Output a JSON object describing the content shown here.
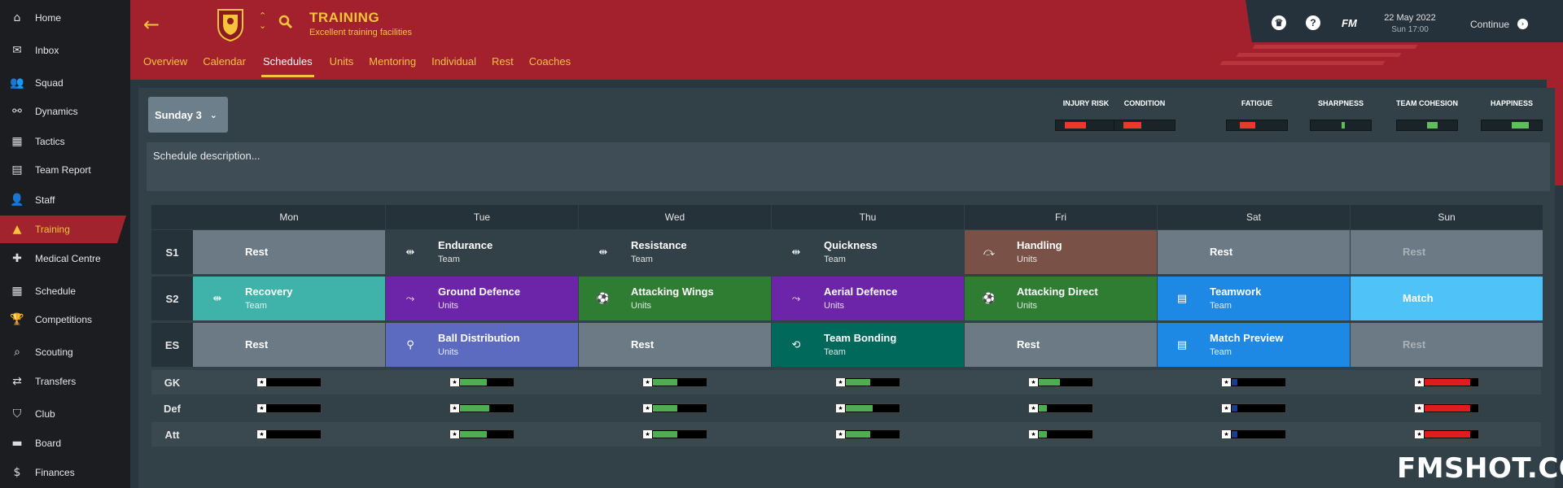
{
  "sidebar": {
    "items": [
      {
        "label": "Home",
        "icon": "home-icon",
        "glyph": "⌂"
      },
      {
        "label": "Inbox",
        "icon": "inbox-icon",
        "glyph": "✉"
      },
      {
        "label": "Squad",
        "icon": "squad-icon",
        "glyph": "👥"
      },
      {
        "label": "Dynamics",
        "icon": "dynamics-icon",
        "glyph": "⚯"
      },
      {
        "label": "Tactics",
        "icon": "tactics-icon",
        "glyph": "▦"
      },
      {
        "label": "Team Report",
        "icon": "team-report-icon",
        "glyph": "▤"
      },
      {
        "label": "Staff",
        "icon": "staff-icon",
        "glyph": "👤"
      },
      {
        "label": "Training",
        "icon": "training-icon",
        "glyph": "▲"
      },
      {
        "label": "Medical Centre",
        "icon": "medical-icon",
        "glyph": "✚"
      },
      {
        "label": "Schedule",
        "icon": "schedule-icon",
        "glyph": "▦"
      },
      {
        "label": "Competitions",
        "icon": "trophy-icon",
        "glyph": "🏆"
      },
      {
        "label": "Scouting",
        "icon": "scouting-icon",
        "glyph": "⌕"
      },
      {
        "label": "Transfers",
        "icon": "transfers-icon",
        "glyph": "⇄"
      },
      {
        "label": "Club",
        "icon": "club-shield-icon",
        "glyph": "⛉"
      },
      {
        "label": "Board",
        "icon": "board-icon",
        "glyph": "▬"
      },
      {
        "label": "Finances",
        "icon": "finances-icon",
        "glyph": "$"
      }
    ],
    "active_label": "Training"
  },
  "header": {
    "title": "TRAINING",
    "subtitle": "Excellent training facilities",
    "tabs": [
      "Overview",
      "Calendar",
      "Schedules",
      "Units",
      "Mentoring",
      "Individual",
      "Rest",
      "Coaches"
    ],
    "active_tab": "Schedules",
    "accent": "#f6c33b",
    "bar_color": "#a2212d"
  },
  "topright": {
    "date": "22 May 2022",
    "time": "Sun 17:00",
    "fm_logo": "FM",
    "continue_label": "Continue"
  },
  "schedule": {
    "selected": "Sunday 3",
    "description_placeholder": "Schedule description..."
  },
  "metrics": [
    {
      "label": "INJURY RISK",
      "color": "#e8392f",
      "level": 0.35,
      "offset": 0.15
    },
    {
      "label": "CONDITION",
      "color": "#e8392f",
      "level": 0.3,
      "offset": 0.15
    },
    {
      "label": "FATIGUE",
      "color": "#e8392f",
      "level": 0.25,
      "offset": 0.22
    },
    {
      "label": "SHARPNESS",
      "color": "#5fbf5c",
      "level": 0.05,
      "offset": 0.52
    },
    {
      "label": "TEAM COHESION",
      "color": "#5fbf5c",
      "level": 0.18,
      "offset": 0.5
    },
    {
      "label": "HAPPINESS",
      "color": "#5fbf5c",
      "level": 0.28,
      "offset": 0.5
    }
  ],
  "grid": {
    "days": [
      "Mon",
      "Tue",
      "Wed",
      "Thu",
      "Fri",
      "Sat",
      "Sun"
    ],
    "rows": [
      {
        "label": "S1",
        "cells": [
          {
            "name": "Rest",
            "sub": "",
            "icon": "",
            "color": "#6b7a84",
            "dim": false
          },
          {
            "name": "Endurance",
            "sub": "Team",
            "icon": "⇹",
            "color": "#324048",
            "dim": false
          },
          {
            "name": "Resistance",
            "sub": "Team",
            "icon": "⇹",
            "color": "#324048",
            "dim": false
          },
          {
            "name": "Quickness",
            "sub": "Team",
            "icon": "⇹",
            "color": "#324048",
            "dim": false
          },
          {
            "name": "Handling",
            "sub": "Units",
            "icon": "⤼",
            "color": "#7a5146",
            "dim": false
          },
          {
            "name": "Rest",
            "sub": "",
            "icon": "",
            "color": "#6b7a84",
            "dim": false
          },
          {
            "name": "Rest",
            "sub": "",
            "icon": "",
            "color": "#6b7a84",
            "dim": true
          }
        ]
      },
      {
        "label": "S2",
        "cells": [
          {
            "name": "Recovery",
            "sub": "Team",
            "icon": "⇹",
            "color": "#3fb3aa",
            "dim": false
          },
          {
            "name": "Ground Defence",
            "sub": "Units",
            "icon": "⤳",
            "color": "#6c24a8",
            "dim": false
          },
          {
            "name": "Attacking Wings",
            "sub": "Units",
            "icon": "⚽",
            "color": "#2e7d32",
            "dim": false
          },
          {
            "name": "Aerial Defence",
            "sub": "Units",
            "icon": "⤳",
            "color": "#6c24a8",
            "dim": false
          },
          {
            "name": "Attacking Direct",
            "sub": "Units",
            "icon": "⚽",
            "color": "#2e7d32",
            "dim": false
          },
          {
            "name": "Teamwork",
            "sub": "Team",
            "icon": "▤",
            "color": "#1e88e5",
            "dim": false
          },
          {
            "name": "Match",
            "sub": "",
            "icon": "",
            "color": "#4fc3f7",
            "dim": false
          }
        ]
      },
      {
        "label": "ES",
        "cells": [
          {
            "name": "Rest",
            "sub": "",
            "icon": "",
            "color": "#6b7a84",
            "dim": false
          },
          {
            "name": "Ball Distribution",
            "sub": "Units",
            "icon": "⚲",
            "color": "#5c6bc0",
            "dim": false
          },
          {
            "name": "Rest",
            "sub": "",
            "icon": "",
            "color": "#6b7a84",
            "dim": false
          },
          {
            "name": "Team Bonding",
            "sub": "Team",
            "icon": "⟲",
            "color": "#00695c",
            "dim": false
          },
          {
            "name": "Rest",
            "sub": "",
            "icon": "",
            "color": "#6b7a84",
            "dim": false
          },
          {
            "name": "Match Preview",
            "sub": "Team",
            "icon": "▤",
            "color": "#1e88e5",
            "dim": false
          },
          {
            "name": "Rest",
            "sub": "",
            "icon": "",
            "color": "#6b7a84",
            "dim": true
          }
        ]
      }
    ],
    "performance": [
      {
        "label": "GK",
        "bars": [
          {
            "level": 0,
            "color": "#4caf50"
          },
          {
            "level": 0.5,
            "color": "#4caf50"
          },
          {
            "level": 0.45,
            "color": "#4caf50"
          },
          {
            "level": 0.45,
            "color": "#4caf50"
          },
          {
            "level": 0.4,
            "color": "#4caf50"
          },
          {
            "level": 0.1,
            "color": "#1e3a8a"
          },
          {
            "level": 0.85,
            "color": "#e21b1b"
          }
        ]
      },
      {
        "label": "Def",
        "bars": [
          {
            "level": 0,
            "color": "#4caf50"
          },
          {
            "level": 0.55,
            "color": "#4caf50"
          },
          {
            "level": 0.45,
            "color": "#4caf50"
          },
          {
            "level": 0.5,
            "color": "#4caf50"
          },
          {
            "level": 0.15,
            "color": "#4caf50"
          },
          {
            "level": 0.1,
            "color": "#1e3a8a"
          },
          {
            "level": 0.85,
            "color": "#e21b1b"
          }
        ]
      },
      {
        "label": "Att",
        "bars": [
          {
            "level": 0,
            "color": "#4caf50"
          },
          {
            "level": 0.5,
            "color": "#4caf50"
          },
          {
            "level": 0.45,
            "color": "#4caf50"
          },
          {
            "level": 0.45,
            "color": "#4caf50"
          },
          {
            "level": 0.15,
            "color": "#4caf50"
          },
          {
            "level": 0.1,
            "color": "#1e3a8a"
          },
          {
            "level": 0.85,
            "color": "#e21b1b"
          }
        ]
      }
    ]
  },
  "watermark": "FMSHOT.COM"
}
